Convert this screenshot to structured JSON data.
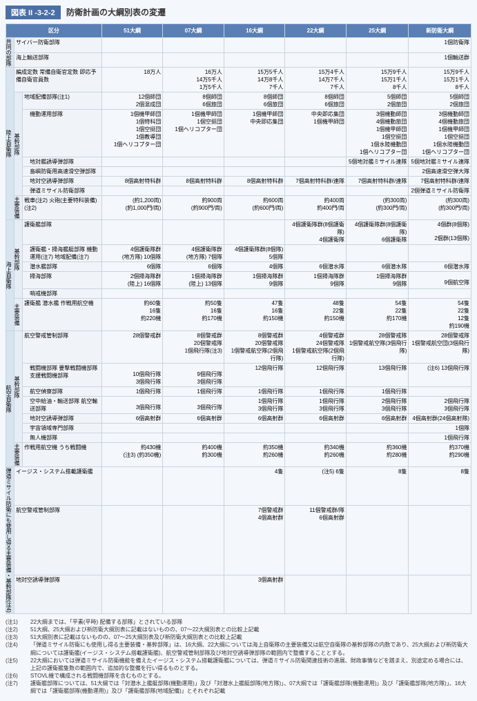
{
  "figure": {
    "label": "図表 II -3-2-2",
    "title": "防衛計画の大綱別表の変遷"
  },
  "columns": [
    "区分",
    "51大綱",
    "07大綱",
    "16大綱",
    "22大綱",
    "25大綱",
    "新防衛大綱"
  ],
  "colwidths": [
    "138px",
    "88px",
    "88px",
    "88px",
    "88px",
    "90px",
    "90px"
  ],
  "branches": {
    "joint": "共同の部隊",
    "ground": "陸上自衛隊",
    "maritime": "海上自衛隊",
    "air": "航空自衛隊",
    "bmd": "弾道ミサイル防衛にも使用し得る主要装備・基幹部隊(注4)"
  },
  "subheads": {
    "kikan": "基幹部隊",
    "soubi": "主要装備",
    "soubi2": "主要装備"
  },
  "rows": {
    "joint1": {
      "label": "サイバー防衛部隊",
      "c": [
        "",
        "",
        "",
        "",
        "",
        "1個防衛隊"
      ]
    },
    "joint2": {
      "label": "海上輸送部隊",
      "c": [
        "",
        "",
        "",
        "",
        "",
        "1個輸送群"
      ]
    },
    "g1": {
      "label": "編成定数\n常備自衛官定数\n即応予備自衛官員数",
      "c": [
        "18万人",
        "16万人\n14万5千人\n1万5千人",
        "15万5千人\n14万8千人\n7千人",
        "15万4千人\n14万7千人\n7千人",
        "15万9千人\n15万1千人\n8千人",
        "15万9千人\n15万1千人\n8千人"
      ]
    },
    "g2": {
      "label": "地域配備部隊(注1)",
      "c": [
        "12個師団\n2個混成団",
        "8個師団\n6個旅団",
        "8個師団\n6個旅団",
        "8個師団\n6個旅団",
        "5個師団\n2個旅団",
        "5個師団\n2個旅団"
      ]
    },
    "g3": {
      "label": "機動運用部隊",
      "c": [
        "1個機甲師団\n1個特科団\n1個空挺団\n1個教導団\n1個ヘリコプター団",
        "1個機甲師団\n1個空挺団\n1個ヘリコプター団",
        "1個機甲師団\n中央即応集団",
        "中央即応集団\n1個機甲師団",
        "3個機動師団\n4個機動旅団\n1個機甲師団\n1個空挺団\n1個水陸機動団\n1個ヘリコプター団",
        "3個機動師団\n4個機動旅団\n1個機甲師団\n1個空挺団\n1個水陸機動団\n1個ヘリコプター団"
      ]
    },
    "g4": {
      "label": "地対艦誘導弾部隊",
      "c": [
        "",
        "",
        "",
        "",
        "5個地対艦ミサイル連隊",
        "5個地対艦ミサイル連隊"
      ]
    },
    "g5": {
      "label": "島嶼防衛用高速滑空弾部隊",
      "c": [
        "",
        "",
        "",
        "",
        "",
        "2個高速滑空弾大隊"
      ]
    },
    "g6": {
      "label": "地対空誘導弾部隊",
      "c": [
        "8個高射特科群",
        "8個高射特科群",
        "8個高射特科群",
        "7個高射特科群/連隊",
        "7個高射特科群/連隊",
        "7個高射特科群/連隊"
      ]
    },
    "g7": {
      "label": "弾道ミサイル防衛部隊",
      "c": [
        "",
        "",
        "",
        "",
        "",
        "2個弾道ミサイル防衛隊"
      ]
    },
    "g8": {
      "label": "戦車(注2)\n火砲(主要特科装備)(注2)",
      "c": [
        "(約1,200両)\n(約1,000門/両)",
        "約900両\n(約900門/両)",
        "約600両\n(約600門/両)",
        "約400両\n約400門/両",
        "(約300両)\n(約300門/両)",
        "(約300両)\n(約300門/両)"
      ]
    },
    "m1": {
      "label": "護衛艦部隊",
      "c": [
        "",
        "",
        "",
        "4個護衛隊群(8個護衛隊)\n4個護衛隊",
        "4個護衛隊群(8個護衛隊)\n6個護衛隊",
        "4個群(8個隊)\n\n2個群(13個隊)"
      ]
    },
    "m2": {
      "label": "護衛艦・掃海艦艇部隊\n機動運用(注7)\n地域配備(注7)",
      "c": [
        "4個護衛隊群\n(地方隊) 10個隊",
        "4個護衛隊群\n(地方隊) 7個隊",
        "4個護衛隊群(8個隊)\n5個隊",
        "",
        "",
        ""
      ]
    },
    "m3": {
      "label": "潜水艦部隊",
      "c": [
        "6個隊",
        "6個隊",
        "4個隊",
        "6個潜水隊",
        "6個潜水隊",
        "6個潜水隊"
      ]
    },
    "m4": {
      "label": "掃海部隊",
      "c": [
        "2個掃海隊群\n(陸上) 16個隊",
        "1個掃海隊群\n(陸上) 13個隊",
        "1個掃海隊群\n9個隊",
        "1個掃海隊群\n9個隊",
        "1個掃海隊群\n9個隊",
        "\n9個航空隊"
      ]
    },
    "m5": {
      "label": "哨戒機部隊",
      "c": [
        "",
        "",
        "",
        "",
        "",
        ""
      ]
    },
    "m6": {
      "label": "護衛艦\n潜水艦\n作戦用航空機",
      "c": [
        "約60隻\n16隻\n約220機",
        "約50隻\n16隻\n約170機",
        "47隻\n16隻\n約150機",
        "48隻\n22隻\n約150機",
        "54隻\n22隻\n約170機",
        "54隻\n22隻\n12隻\n約190機"
      ]
    },
    "a1": {
      "label": "航空警戒管制部隊",
      "c": [
        "28個警戒群",
        "8個警戒群\n20個警戒隊\n1個飛行隊(注3)",
        "8個警戒群\n20個警戒隊\n1個警戒航空隊(2個飛行隊)",
        "4個警戒群\n24個警戒隊\n1個警戒航空隊(2個飛行隊)",
        "28個警戒隊\n1個警戒航空隊(3個飛行隊)",
        "28個警戒隊\n1個警戒航空団(3個飛行隊)"
      ]
    },
    "a2": {
      "label": "戦闘機部隊\n  要撃戦闘機部隊\n  支援戦闘機部隊",
      "c": [
        "\n10個飛行隊\n3個飛行隊",
        "\n9個飛行隊\n3個飛行隊",
        "12個飛行隊",
        "12個飛行隊",
        "13個飛行隊",
        "(注6) 13個飛行隊"
      ]
    },
    "a3": {
      "label": "航空偵察部隊",
      "c": [
        "1個飛行隊",
        "1個飛行隊",
        "1個飛行隊",
        "1個飛行隊",
        "1個飛行隊",
        ""
      ]
    },
    "a4": {
      "label": "空中給油・輸送部隊\n航空輸送部隊",
      "c": [
        "\n3個飛行隊",
        "\n3個飛行隊",
        "1個飛行隊\n3個飛行隊",
        "1個飛行隊\n3個飛行隊",
        "2個飛行隊\n3個飛行隊",
        "2個飛行隊\n3個飛行隊"
      ]
    },
    "a5": {
      "label": "地対空誘導弾部隊",
      "c": [
        "6個高射群",
        "6個高射群",
        "6個高射群",
        "6個高射群",
        "6個高射群",
        "4個高射群(24個高射隊)"
      ]
    },
    "a6": {
      "label": "宇宙領域専門部隊",
      "c": [
        "",
        "",
        "",
        "",
        "",
        "1個隊"
      ]
    },
    "a7": {
      "label": "無人機部隊",
      "c": [
        "",
        "",
        "",
        "",
        "",
        "1個飛行隊"
      ]
    },
    "a8": {
      "label": "作戦用航空機\n  うち戦闘機",
      "c": [
        "約430機\n(注3) (約350機)",
        "約400機\n約300機",
        "約350機\n約260機",
        "約340機\n約260機",
        "約360機\n約280機",
        "約370機\n約290機"
      ]
    },
    "b1": {
      "label": "イージス・システム搭載護衛艦",
      "c": [
        "",
        "",
        "4隻",
        "(注5) 6隻",
        "8隻",
        "8隻"
      ]
    },
    "b2": {
      "label": "航空警戒管制部隊",
      "c": [
        "",
        "",
        "7個警戒群\n4個高射群",
        "11個警戒群/隊\n6個高射群",
        "",
        ""
      ]
    },
    "b3": {
      "label": "地対空誘導弾部隊",
      "c": [
        "",
        "",
        "3個高射群",
        "",
        "",
        ""
      ]
    }
  },
  "notes": [
    {
      "tag": "(注1)",
      "text": "22大綱までは、「平素(平時) 配備する部隊」とされている部隊"
    },
    {
      "tag": "(注2)",
      "text": "51大綱、25大綱および新防衛大綱別表に記載はないものの、07〜22大綱別表との比較上記載"
    },
    {
      "tag": "(注3)",
      "text": "51大綱別表に記載はないものの、07〜25大綱別表及び新防衛大綱別表との比較上記載"
    },
    {
      "tag": "(注4)",
      "text": "「弾道ミサイル防衛にも使用し得る主要装備・基幹部隊」は、16大綱、22大綱については海上自衛隊の主要装備又は航空自衛隊の基幹部隊の内数であり、25大綱および新防衛大綱については護衛艦(イージス・システム搭載護衛艦)、航空警戒管制部隊及び地対空誘導弾部隊の範囲内で整備することとする。"
    },
    {
      "tag": "(注5)",
      "text": "22大綱においては弾道ミサイル防衛機能を備えたイージス・システム搭載護衛艦については、弾道ミサイル防衛関連技術の進展、財政事情などを踏まえ、別途定める場合には、上記の護衛艦隻数の範囲内で、追加的な整備を行い得るものとする。"
    },
    {
      "tag": "(注6)",
      "text": "STOVL機で構成される戦闘機部隊を含むものとする。"
    },
    {
      "tag": "(注7)",
      "text": "護衛艦部隊については、51大綱では「対潜水上艦艇部隊(機動運用)」及び「対潜水上艦艇部隊(地方隊)」、07大綱では「護衛艦部隊(機動運用)」及び「護衛艦部隊(地方隊)」、16大綱では「護衛艦部隊(機動運用)」及び「護衛艦部隊(地域配備)」とそれぞれ記載"
    }
  ]
}
